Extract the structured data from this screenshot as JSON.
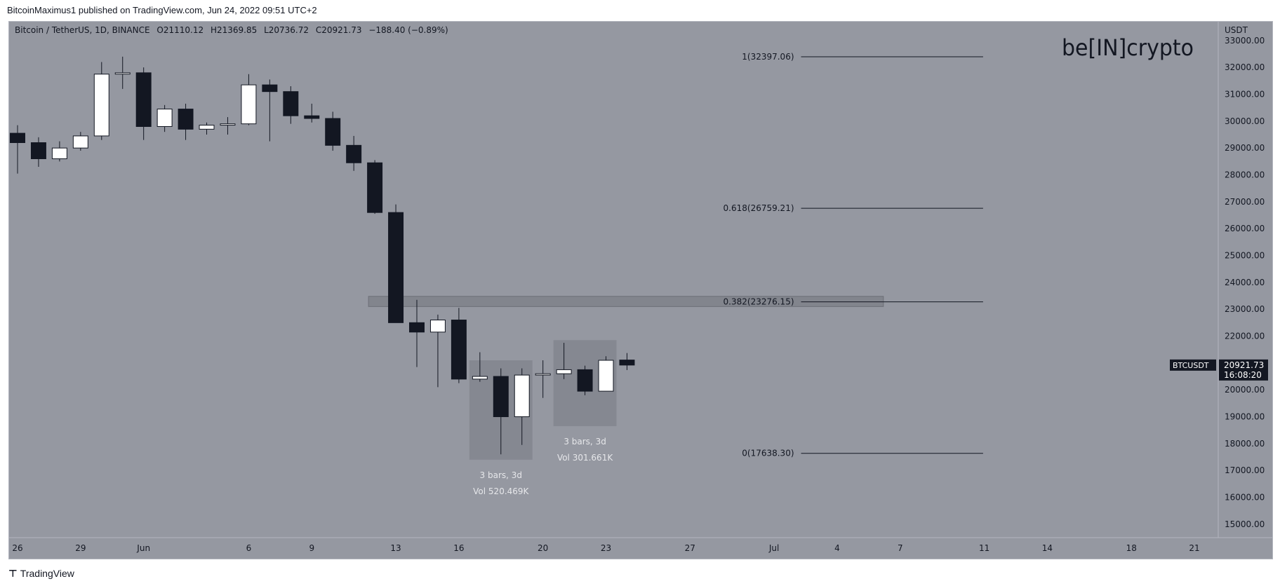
{
  "header": {
    "published_by": "BitcoinMaximus1 published on TradingView.com, Jun 24, 2022 09:51 UTC+2"
  },
  "footer": {
    "logo_text": "TradingView"
  },
  "watermark": {
    "brand": "be[IN]crypto"
  },
  "legend": {
    "symbol": "Bitcoin / TetherUS, 1D, BINANCE",
    "o_label": "O",
    "o_value": "21110.12",
    "h_label": "H",
    "h_value": "21369.85",
    "l_label": "L",
    "l_value": "20736.72",
    "c_label": "C",
    "c_value": "20921.73",
    "change": "−188.40 (−0.89%)"
  },
  "chart_data": {
    "type": "candlestick",
    "currency_label": "USDT",
    "y_ticks": [
      15000,
      16000,
      17000,
      18000,
      19000,
      20000,
      21000,
      22000,
      23000,
      24000,
      25000,
      26000,
      27000,
      28000,
      29000,
      30000,
      31000,
      32000,
      33000
    ],
    "y_tick_labels": [
      "15000.00",
      "16000.00",
      "17000.00",
      "18000.00",
      "19000.00",
      "20000.00",
      "21000.00",
      "22000.00",
      "23000.00",
      "24000.00",
      "25000.00",
      "26000.00",
      "27000.00",
      "28000.00",
      "29000.00",
      "30000.00",
      "31000.00",
      "32000.00",
      "33000.00"
    ],
    "ylim": [
      14500,
      33700
    ],
    "x_ticks": [
      {
        "date": "2022-05-26",
        "label": "26"
      },
      {
        "date": "2022-05-29",
        "label": "29"
      },
      {
        "date": "2022-06-01",
        "label": "Jun"
      },
      {
        "date": "2022-06-06",
        "label": "6"
      },
      {
        "date": "2022-06-09",
        "label": "9"
      },
      {
        "date": "2022-06-13",
        "label": "13"
      },
      {
        "date": "2022-06-16",
        "label": "16"
      },
      {
        "date": "2022-06-20",
        "label": "20"
      },
      {
        "date": "2022-06-23",
        "label": "23"
      },
      {
        "date": "2022-06-27",
        "label": "27"
      },
      {
        "date": "2022-07-01",
        "label": "Jul"
      },
      {
        "date": "2022-07-04",
        "label": "4"
      },
      {
        "date": "2022-07-07",
        "label": "7"
      },
      {
        "date": "2022-07-11",
        "label": "11"
      },
      {
        "date": "2022-07-14",
        "label": "14"
      },
      {
        "date": "2022-07-18",
        "label": "18"
      },
      {
        "date": "2022-07-21",
        "label": "21"
      }
    ],
    "xlim": [
      "2022-05-26",
      "2022-07-22"
    ],
    "candles": [
      {
        "date": "2022-05-26",
        "o": 29550,
        "h": 29850,
        "l": 28050,
        "c": 29200
      },
      {
        "date": "2022-05-27",
        "o": 29200,
        "h": 29400,
        "l": 28300,
        "c": 28600
      },
      {
        "date": "2022-05-28",
        "o": 28600,
        "h": 29250,
        "l": 28500,
        "c": 29000
      },
      {
        "date": "2022-05-29",
        "o": 29000,
        "h": 29600,
        "l": 28900,
        "c": 29450
      },
      {
        "date": "2022-05-30",
        "o": 29450,
        "h": 32200,
        "l": 29300,
        "c": 31750
      },
      {
        "date": "2022-05-31",
        "o": 31750,
        "h": 32400,
        "l": 31200,
        "c": 31800
      },
      {
        "date": "2022-06-01",
        "o": 31800,
        "h": 32000,
        "l": 29300,
        "c": 29800
      },
      {
        "date": "2022-06-02",
        "o": 29800,
        "h": 30600,
        "l": 29600,
        "c": 30450
      },
      {
        "date": "2022-06-03",
        "o": 30450,
        "h": 30650,
        "l": 29300,
        "c": 29700
      },
      {
        "date": "2022-06-04",
        "o": 29700,
        "h": 29950,
        "l": 29500,
        "c": 29850
      },
      {
        "date": "2022-06-05",
        "o": 29850,
        "h": 30150,
        "l": 29500,
        "c": 29900
      },
      {
        "date": "2022-06-06",
        "o": 29900,
        "h": 31750,
        "l": 29850,
        "c": 31350
      },
      {
        "date": "2022-06-07",
        "o": 31350,
        "h": 31550,
        "l": 29250,
        "c": 31100
      },
      {
        "date": "2022-06-08",
        "o": 31100,
        "h": 31300,
        "l": 29900,
        "c": 30200
      },
      {
        "date": "2022-06-09",
        "o": 30200,
        "h": 30650,
        "l": 29950,
        "c": 30100
      },
      {
        "date": "2022-06-10",
        "o": 30100,
        "h": 30350,
        "l": 28900,
        "c": 29100
      },
      {
        "date": "2022-06-11",
        "o": 29100,
        "h": 29450,
        "l": 28150,
        "c": 28450
      },
      {
        "date": "2022-06-12",
        "o": 28450,
        "h": 28550,
        "l": 26550,
        "c": 26600
      },
      {
        "date": "2022-06-13",
        "o": 26600,
        "h": 26900,
        "l": 22600,
        "c": 22500
      },
      {
        "date": "2022-06-14",
        "o": 22500,
        "h": 23350,
        "l": 20850,
        "c": 22150
      },
      {
        "date": "2022-06-15",
        "o": 22150,
        "h": 22800,
        "l": 20100,
        "c": 22600
      },
      {
        "date": "2022-06-16",
        "o": 22600,
        "h": 23050,
        "l": 20250,
        "c": 20400
      },
      {
        "date": "2022-06-17",
        "o": 20400,
        "h": 21400,
        "l": 20300,
        "c": 20500
      },
      {
        "date": "2022-06-18",
        "o": 20500,
        "h": 20800,
        "l": 17600,
        "c": 19000
      },
      {
        "date": "2022-06-19",
        "o": 19000,
        "h": 20800,
        "l": 17950,
        "c": 20550
      },
      {
        "date": "2022-06-20",
        "o": 20550,
        "h": 21100,
        "l": 19700,
        "c": 20600
      },
      {
        "date": "2022-06-21",
        "o": 20600,
        "h": 21750,
        "l": 20400,
        "c": 20750
      },
      {
        "date": "2022-06-22",
        "o": 20750,
        "h": 20900,
        "l": 19800,
        "c": 19950
      },
      {
        "date": "2022-06-23",
        "o": 19950,
        "h": 21250,
        "l": 19950,
        "c": 21100
      },
      {
        "date": "2022-06-24",
        "o": 21110.12,
        "h": 21369.85,
        "l": 20736.72,
        "c": 20921.73
      }
    ],
    "price_label": {
      "symbol": "BTCUSDT",
      "price": "20921.73",
      "countdown": "16:08:20",
      "value": 20921.73
    },
    "fib_levels": [
      {
        "level": 32397.06,
        "label": "1(32397.06)"
      },
      {
        "level": 26759.21,
        "label": "0.618(26759.21)"
      },
      {
        "level": 23276.15,
        "label": "0.382(23276.15)"
      },
      {
        "level": 17638.3,
        "label": "0(17638.30)"
      }
    ],
    "fib_x_range": [
      "2022-06-23",
      "2022-07-05"
    ],
    "resistance_zone": {
      "x_start": "2022-06-12",
      "x_end": "2022-07-06",
      "y_low": 23100,
      "y_high": 23480
    },
    "range_boxes": [
      {
        "x_start": "2022-06-17",
        "x_end": "2022-06-19",
        "y_low": 17400,
        "y_high": 21100,
        "bars_label": "3 bars, 3d",
        "vol_label": "Vol 520.469K"
      },
      {
        "x_start": "2022-06-21",
        "x_end": "2022-06-23",
        "y_low": 18650,
        "y_high": 21850,
        "bars_label": "3 bars, 3d",
        "vol_label": "Vol 301.661K"
      }
    ]
  },
  "colors": {
    "background": "#9598a1",
    "up_candle": "#ffffff",
    "down_candle": "#131722",
    "wick": "#131722",
    "fib_line": "#131722",
    "zone": "#7a7d85",
    "box": "#858891",
    "box_text": "#e6e7ea",
    "axis_text": "#131722"
  }
}
